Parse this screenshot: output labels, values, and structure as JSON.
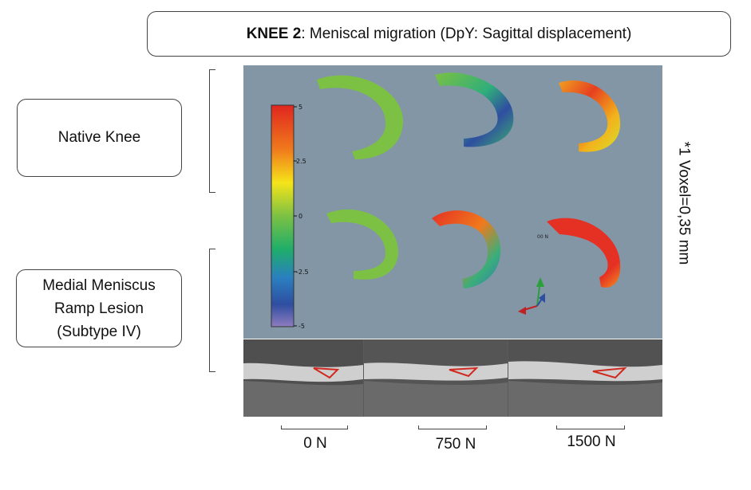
{
  "title": {
    "bold": "KNEE 2",
    "rest": ": Meniscal migration (DpY: Sagittal displacement)"
  },
  "rows": [
    {
      "label_lines": [
        "Native Knee"
      ]
    },
    {
      "label_lines": [
        "Medial Meniscus",
        "Ramp Lesion",
        "(Subtype IV)"
      ]
    }
  ],
  "voxel_note": "*1 Voxel=0,35 mm",
  "colorbar": {
    "ticks": [
      "5",
      "2.5",
      "0",
      "-2.5",
      "-5"
    ]
  },
  "overlay_text": "00 N",
  "forces": [
    "0 N",
    "750 N",
    "1500 N"
  ],
  "colors": {
    "panel_bg": "#8296a6",
    "green": "#7cc143",
    "red": "#e53024",
    "blue": "#2f4ea0",
    "lesion_outline": "#d02a20"
  }
}
